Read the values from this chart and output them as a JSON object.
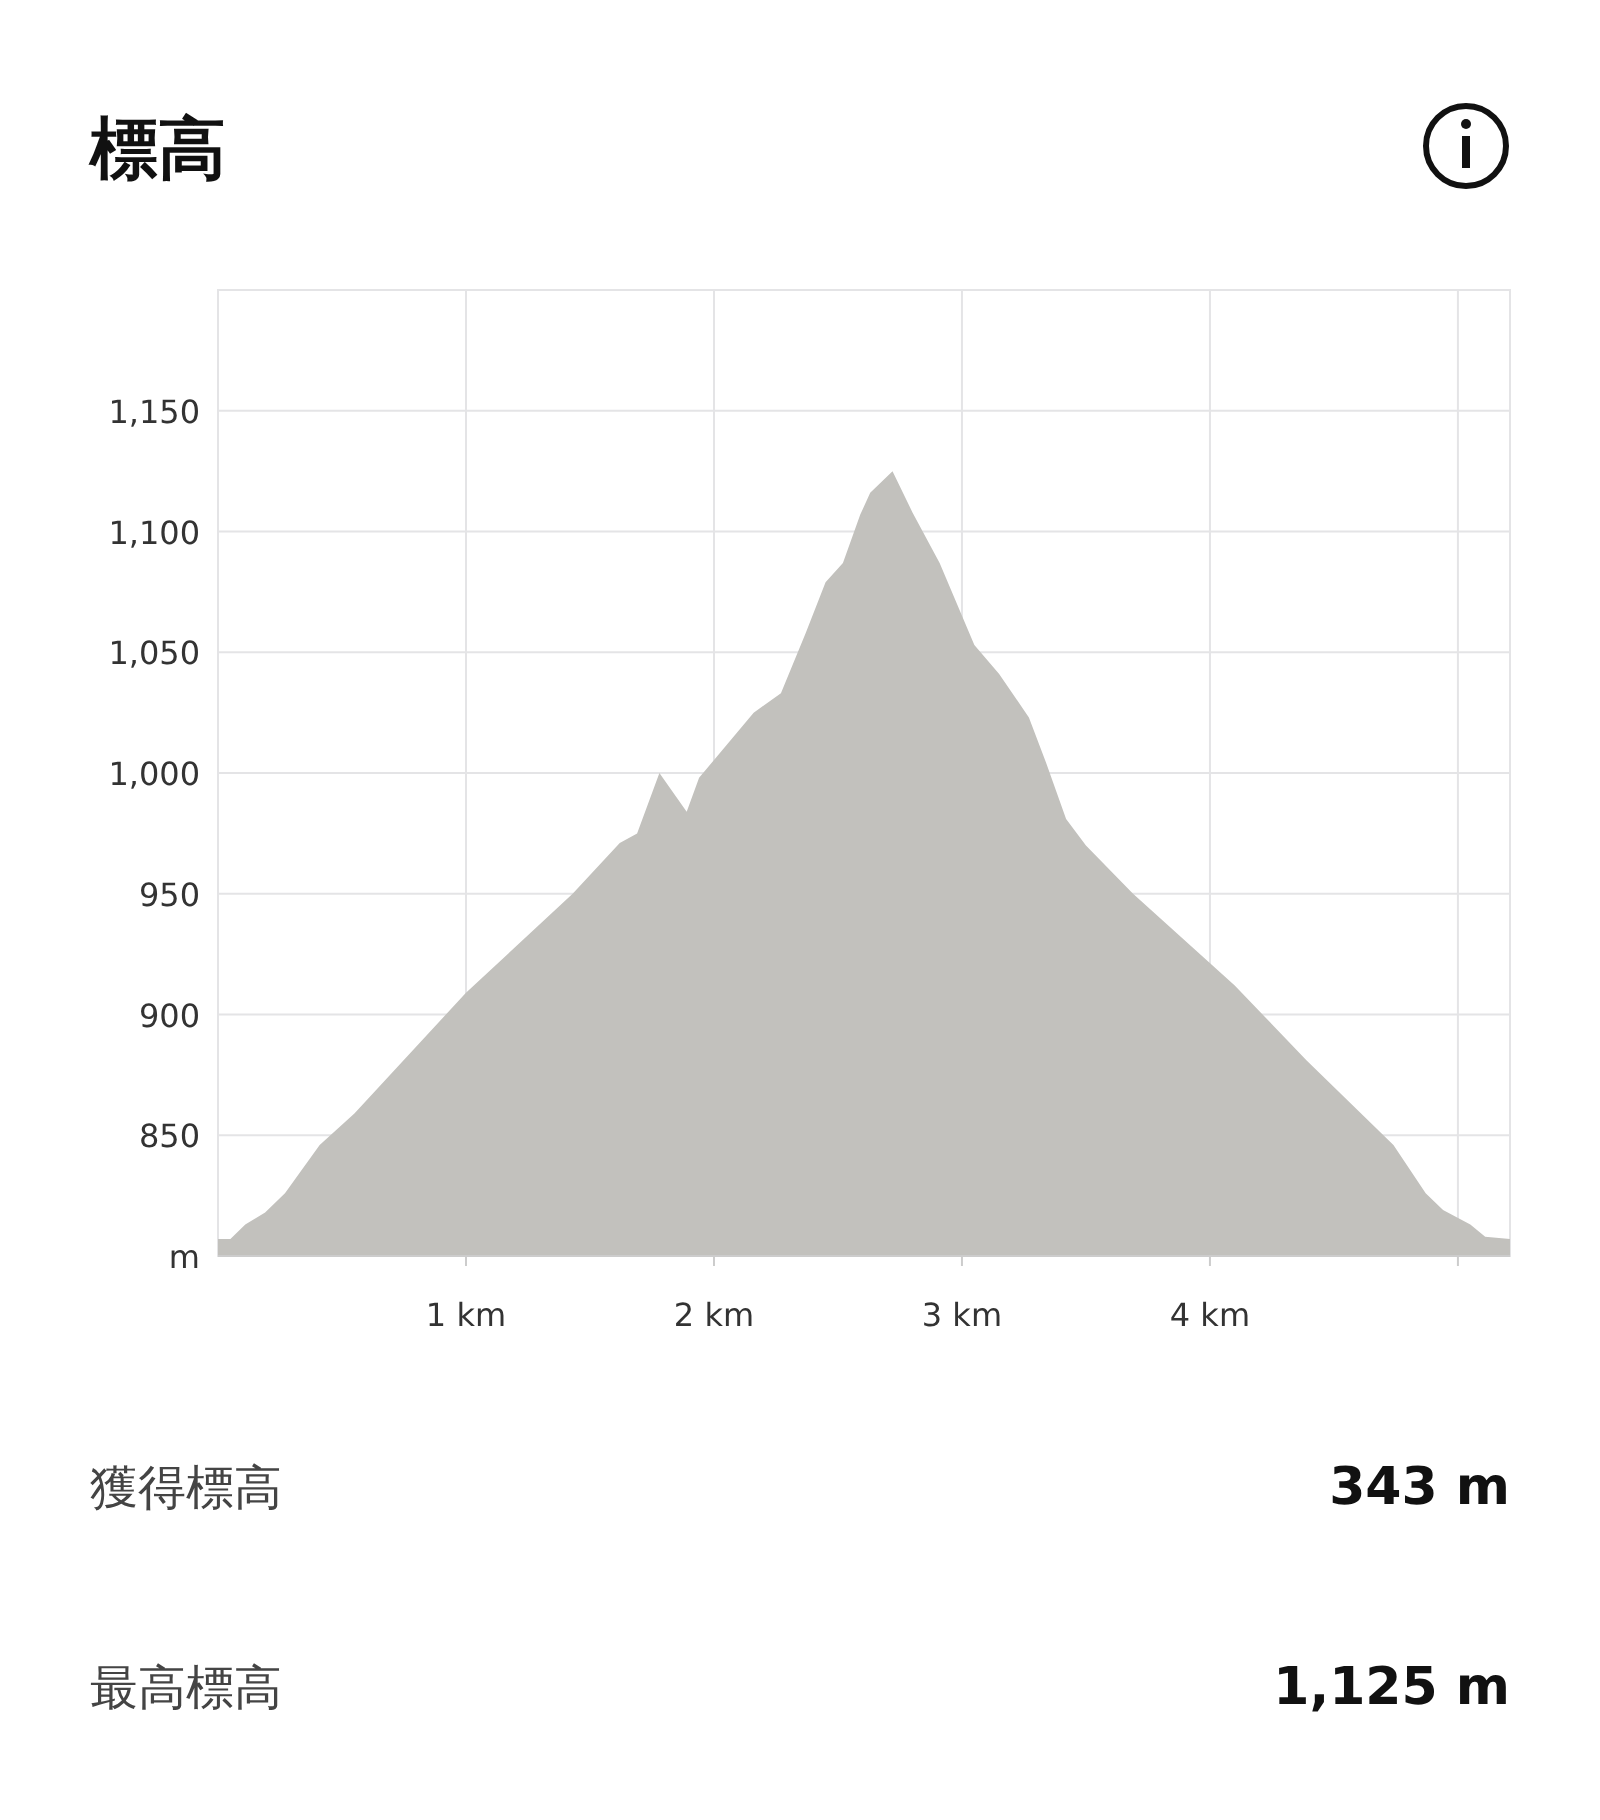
{
  "chart_data": {
    "type": "area",
    "title": "標高",
    "color": "#c2c1bd",
    "grid": true,
    "x": [
      0,
      0.05,
      0.11,
      0.19,
      0.27,
      0.41,
      0.55,
      1.0,
      1.43,
      1.62,
      1.69,
      1.78,
      1.89,
      1.94,
      2.16,
      2.27,
      2.37,
      2.45,
      2.52,
      2.59,
      2.63,
      2.72,
      2.8,
      2.91,
      3.05,
      3.15,
      3.27,
      3.34,
      3.42,
      3.5,
      3.69,
      4.1,
      4.39,
      4.74,
      4.87,
      4.94,
      5.05,
      5.11,
      5.21
    ],
    "values": [
      807,
      807,
      813,
      818,
      826,
      846,
      859,
      909,
      950,
      971,
      975,
      1000,
      984,
      998,
      1025,
      1033,
      1058,
      1079,
      1087,
      1107,
      1116,
      1125,
      1108,
      1087,
      1053,
      1041,
      1023,
      1004,
      981,
      970,
      950,
      912,
      881,
      846,
      826,
      819,
      813,
      808,
      807
    ],
    "xlim": [
      0,
      5.21
    ],
    "ylim": [
      800,
      1200
    ],
    "xticks": [
      {
        "value": 1,
        "label": "1 km"
      },
      {
        "value": 2,
        "label": "2 km"
      },
      {
        "value": 3,
        "label": "3 km"
      },
      {
        "value": 4,
        "label": "4 km"
      },
      {
        "value": 5,
        "label": null
      }
    ],
    "yticks": [
      {
        "value": 800,
        "label": "m"
      },
      {
        "value": 850,
        "label": "850"
      },
      {
        "value": 900,
        "label": "900"
      },
      {
        "value": 950,
        "label": "950"
      },
      {
        "value": 1000,
        "label": "1,000"
      },
      {
        "value": 1050,
        "label": "1,050"
      },
      {
        "value": 1100,
        "label": "1,100"
      },
      {
        "value": 1150,
        "label": "1,150"
      }
    ],
    "annotations": [
      "獲得標高",
      "343 m",
      "最高標高",
      "1,125 m"
    ]
  }
}
